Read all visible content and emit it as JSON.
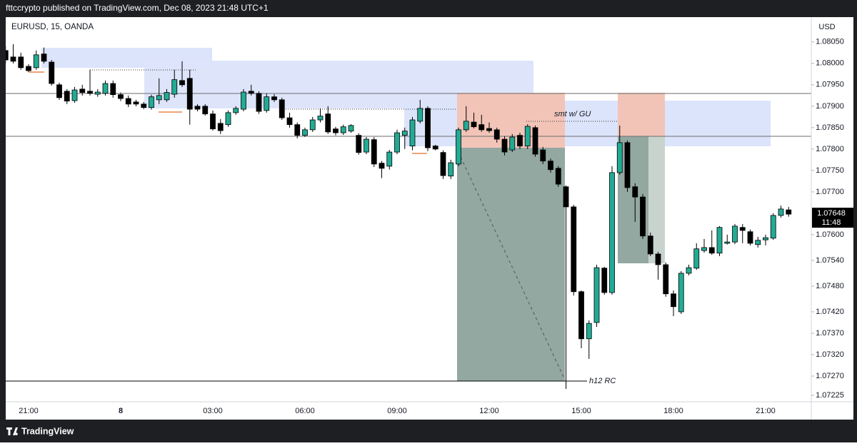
{
  "header": {
    "text": "fttccrypto published on TradingView.com, Dec 08, 2023 21:48 UTC+1"
  },
  "footer": {
    "brand": "TradingView"
  },
  "chart_data": {
    "type": "candlestick",
    "symbol": "EURUSD, 15, OANDA",
    "currency": "USD",
    "up_color": "#22ab94",
    "down_color": "#000000",
    "grid": false,
    "categories": [
      null,
      null,
      null,
      "21:00",
      null,
      null,
      null,
      null,
      null,
      null,
      null,
      null,
      null,
      null,
      null,
      "8",
      null,
      null,
      null,
      null,
      null,
      null,
      null,
      null,
      null,
      null,
      null,
      "03:00",
      null,
      null,
      null,
      null,
      null,
      null,
      null,
      null,
      null,
      null,
      null,
      "06:00",
      null,
      null,
      null,
      null,
      null,
      null,
      null,
      null,
      null,
      null,
      null,
      "09:00",
      null,
      null,
      null,
      null,
      null,
      null,
      null,
      null,
      null,
      null,
      null,
      "12:00",
      null,
      null,
      null,
      null,
      null,
      null,
      null,
      null,
      null,
      null,
      null,
      "15:00",
      null,
      null,
      null,
      null,
      null,
      null,
      null,
      null,
      null,
      null,
      null,
      "18:00",
      null,
      null,
      null,
      null,
      null,
      null,
      null,
      null,
      null,
      null,
      null,
      "21:00",
      null,
      null,
      null
    ],
    "open": [
      1.0803,
      1.08015,
      1.08015,
      1.07993,
      1.0799,
      1.08022,
      1.08003,
      1.0795,
      1.07935,
      1.07913,
      1.0794,
      1.07935,
      1.07928,
      1.0793,
      1.07953,
      1.07927,
      1.07918,
      1.0791,
      1.07905,
      1.07897,
      1.07915,
      1.07915,
      1.07928,
      1.0796,
      1.07965,
      1.079,
      1.079,
      1.07882,
      1.0786,
      1.07857,
      1.07885,
      1.07893,
      1.07935,
      1.0793,
      1.0789,
      1.07922,
      1.07915,
      1.07873,
      1.07857,
      1.07832,
      1.07845,
      1.07868,
      1.07882,
      1.07847,
      1.07838,
      1.07842,
      1.07832,
      1.07793,
      1.07822,
      1.07767,
      1.0776,
      1.07793,
      1.07832,
      1.07807,
      1.07865,
      1.07895,
      1.07807,
      1.07792,
      1.07737,
      1.07765,
      1.07845,
      1.07863,
      1.07857,
      1.07848,
      1.07845,
      1.07823,
      1.07798,
      1.07832,
      1.07807,
      1.0785,
      1.07798,
      1.07772,
      1.07755,
      1.07712,
      1.07665,
      1.07467,
      1.07357,
      1.07395,
      1.07522,
      1.07465,
      1.07745,
      1.07815,
      1.07712,
      1.07688,
      1.07597,
      1.07555,
      1.0753,
      1.07462,
      1.0742,
      1.0751,
      1.07522,
      1.07563,
      1.0757,
      1.07557,
      1.0758,
      1.07583,
      1.07617,
      1.07607,
      1.07577,
      1.07588,
      1.07592,
      1.07645,
      1.07658
    ],
    "high": [
      1.0804,
      1.08045,
      1.08025,
      1.07998,
      1.0803,
      1.08037,
      1.08008,
      1.07955,
      1.0794,
      1.07945,
      1.0795,
      1.07985,
      1.0794,
      1.0796,
      1.0796,
      1.07932,
      1.07925,
      1.07915,
      1.0791,
      1.07927,
      1.07965,
      1.0794,
      1.07985,
      1.08005,
      1.07985,
      1.07905,
      1.07905,
      1.0789,
      1.0787,
      1.0789,
      1.079,
      1.0794,
      1.0795,
      1.07935,
      1.0793,
      1.07928,
      1.0792,
      1.07885,
      1.07862,
      1.0785,
      1.07875,
      1.07895,
      1.079,
      1.07852,
      1.07857,
      1.07858,
      1.07837,
      1.07828,
      1.07828,
      1.07772,
      1.07798,
      1.07845,
      1.0785,
      1.07875,
      1.07915,
      1.079,
      1.0781,
      1.07797,
      1.07775,
      1.0785,
      1.079,
      1.07885,
      1.0788,
      1.07862,
      1.0785,
      1.0783,
      1.07835,
      1.07838,
      1.07858,
      1.07855,
      1.07805,
      1.07778,
      1.0776,
      1.07715,
      1.0767,
      1.0747,
      1.074,
      1.0753,
      1.07525,
      1.0776,
      1.07855,
      1.0782,
      1.0772,
      1.07695,
      1.07605,
      1.0756,
      1.07535,
      1.0747,
      1.07515,
      1.0753,
      1.0758,
      1.0759,
      1.0761,
      1.0762,
      1.076,
      1.07625,
      1.07625,
      1.07612,
      1.07595,
      1.076,
      1.0765,
      1.07668,
      1.07665
    ],
    "low": [
      1.08,
      1.08,
      1.07985,
      1.0798,
      1.07985,
      1.08,
      1.07948,
      1.07915,
      1.07905,
      1.07908,
      1.07925,
      1.07925,
      1.07922,
      1.07925,
      1.0792,
      1.07912,
      1.07898,
      1.079,
      1.07893,
      1.07892,
      1.07905,
      1.0791,
      1.0792,
      1.07945,
      1.07857,
      1.07888,
      1.07878,
      1.07843,
      1.07835,
      1.07852,
      1.0788,
      1.07888,
      1.07925,
      1.07882,
      1.07885,
      1.0791,
      1.07868,
      1.0785,
      1.07825,
      1.07828,
      1.0784,
      1.07862,
      1.07835,
      1.07832,
      1.07833,
      1.07838,
      1.07787,
      1.07788,
      1.07758,
      1.07732,
      1.07752,
      1.07788,
      1.078,
      1.07797,
      1.0786,
      1.07795,
      1.07797,
      1.0773,
      1.0773,
      1.0776,
      1.0784,
      1.07848,
      1.0784,
      1.07838,
      1.07815,
      1.07785,
      1.07793,
      1.078,
      1.078,
      1.07782,
      1.07765,
      1.07745,
      1.07712,
      1.0724,
      1.07458,
      1.07335,
      1.0731,
      1.07385,
      1.0746,
      1.0746,
      1.0774,
      1.077,
      1.0763,
      1.0759,
      1.0755,
      1.07495,
      1.07455,
      1.0741,
      1.07415,
      1.07505,
      1.07518,
      1.07558,
      1.07553,
      1.0755,
      1.07577,
      1.07578,
      1.0758,
      1.07575,
      1.0757,
      1.07575,
      1.07588,
      1.0764,
      1.07642
    ],
    "close": [
      1.08008,
      1.08005,
      1.0799,
      1.07983,
      1.0802,
      1.08005,
      1.07953,
      1.0792,
      1.07912,
      1.07938,
      1.07932,
      1.0793,
      1.07933,
      1.07953,
      1.07927,
      1.07918,
      1.07905,
      1.07905,
      1.07897,
      1.07922,
      1.07925,
      1.07932,
      1.07962,
      1.0795,
      1.07893,
      1.07893,
      1.07882,
      1.07847,
      1.07843,
      1.07885,
      1.07895,
      1.07933,
      1.0793,
      1.07888,
      1.07922,
      1.07915,
      1.07873,
      1.07857,
      1.07832,
      1.07845,
      1.07868,
      1.07877,
      1.0784,
      1.07838,
      1.07852,
      1.07855,
      1.07792,
      1.07823,
      1.07765,
      1.07755,
      1.07793,
      1.07838,
      1.07842,
      1.07868,
      1.07895,
      1.07803,
      1.078,
      1.07738,
      1.07768,
      1.07845,
      1.07865,
      1.07852,
      1.07845,
      1.07843,
      1.07823,
      1.07793,
      1.07828,
      1.07807,
      1.07853,
      1.07788,
      1.07772,
      1.07752,
      1.07718,
      1.07665,
      1.07467,
      1.07357,
      1.07393,
      1.07523,
      1.07465,
      1.07745,
      1.07815,
      1.0771,
      1.07688,
      1.07597,
      1.07555,
      1.0753,
      1.07462,
      1.07432,
      1.0751,
      1.07523,
      1.07567,
      1.0757,
      1.07557,
      1.07617,
      1.07583,
      1.0762,
      1.0761,
      1.0758,
      1.07587,
      1.07593,
      1.07645,
      1.0766,
      1.07648
    ],
    "ylim": [
      1.0721,
      1.08108
    ],
    "yticks": [
      {
        "value": 1.0805,
        "label": "1.08050"
      },
      {
        "value": 1.08,
        "label": "1.08000"
      },
      {
        "value": 1.0795,
        "label": "1.07950"
      },
      {
        "value": 1.079,
        "label": "1.07900"
      },
      {
        "value": 1.0785,
        "label": "1.07850"
      },
      {
        "value": 1.078,
        "label": "1.07800"
      },
      {
        "value": 1.0775,
        "label": "1.07750"
      },
      {
        "value": 1.077,
        "label": "1.07700"
      },
      {
        "value": 1.076,
        "label": "1.07600"
      },
      {
        "value": 1.0754,
        "label": "1.07540"
      },
      {
        "value": 1.0748,
        "label": "1.07480"
      },
      {
        "value": 1.0742,
        "label": "1.07420"
      },
      {
        "value": 1.0737,
        "label": "1.07370"
      },
      {
        "value": 1.0732,
        "label": "1.07320"
      },
      {
        "value": 1.0727,
        "label": "1.07270"
      },
      1.07225
    ],
    "last_price": 1.07648,
    "countdown": "11:48",
    "annotations": [
      "smt w/ GU",
      "h12 RC"
    ]
  }
}
